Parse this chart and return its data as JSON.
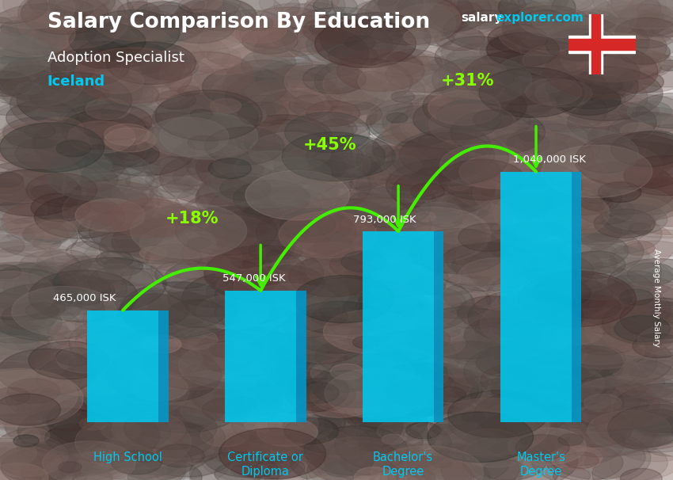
{
  "title": "Salary Comparison By Education",
  "subtitle1": "Adoption Specialist",
  "subtitle2": "Iceland",
  "ylabel": "Average Monthly Salary",
  "categories": [
    "High School",
    "Certificate or\nDiploma",
    "Bachelor's\nDegree",
    "Master's\nDegree"
  ],
  "values": [
    465000,
    547000,
    793000,
    1040000
  ],
  "bar_labels": [
    "465,000 ISK",
    "547,000 ISK",
    "793,000 ISK",
    "1,040,000 ISK"
  ],
  "pct_labels": [
    "+18%",
    "+45%",
    "+31%"
  ],
  "pct_arcs": [
    {
      "from_bar": 0,
      "to_bar": 1,
      "label": "+18%",
      "ctrl_lift": 220000
    },
    {
      "from_bar": 1,
      "to_bar": 2,
      "label": "+45%",
      "ctrl_lift": 280000
    },
    {
      "from_bar": 2,
      "to_bar": 3,
      "label": "+31%",
      "ctrl_lift": 300000
    }
  ],
  "bar_face_color": "#00c8ee",
  "bar_side_color": "#0099cc",
  "bar_top_color": "#55ddff",
  "bg_color": "#3a3a4a",
  "title_color": "#ffffff",
  "subtitle1_color": "#ffffff",
  "subtitle2_color": "#00c8ee",
  "label_color": "#ffffff",
  "pct_color": "#88ff00",
  "arrow_color": "#44ee00",
  "site_salary_color": "#ffffff",
  "site_explorer_color": "#00c8ee",
  "ylabel_color": "#ffffff",
  "xlabel_color": "#00c8ee"
}
